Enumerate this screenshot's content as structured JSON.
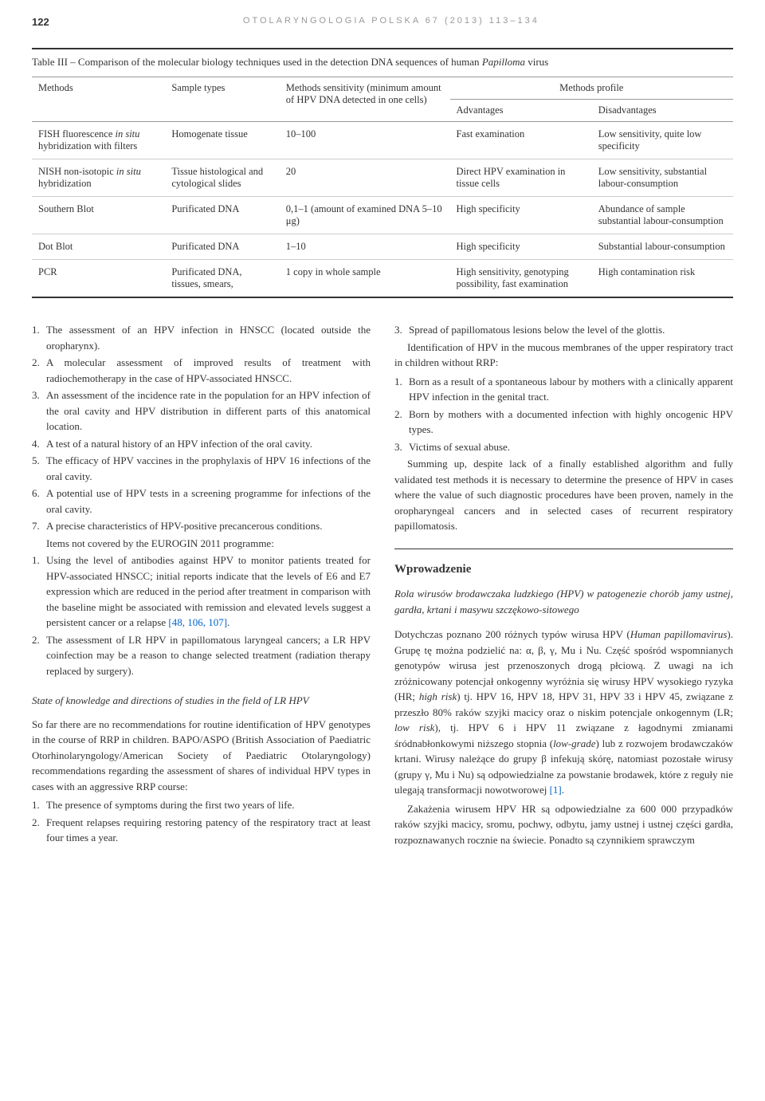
{
  "header": {
    "page_number": "122",
    "journal": "OTOLARYNGOLOGIA POLSKA 67 (2013) 113–134"
  },
  "table": {
    "title_prefix": "Table III – Comparison of the molecular biology techniques used in the detection DNA sequences of human ",
    "title_italic": "Papilloma",
    "title_suffix": " virus",
    "columns": {
      "c1": "Methods",
      "c2": "Sample types",
      "c3": "Methods sensitivity (minimum amount of HPV DNA detected in one cells)",
      "c4": "Methods profile",
      "c4a": "Advantages",
      "c4b": "Disadvantages"
    },
    "rows": [
      {
        "method_pre": "FISH fluorescence ",
        "method_it": "in situ",
        "method_post": " hybridization with filters",
        "sample": "Homogenate tissue",
        "sensitivity": "10–100",
        "adv": "Fast examination",
        "dis": "Low sensitivity, quite low specificity"
      },
      {
        "method_pre": "NISH non-isotopic ",
        "method_it": "in situ",
        "method_post": " hybridization",
        "sample": "Tissue histological and cytological slides",
        "sensitivity": "20",
        "adv": "Direct HPV examination in tissue cells",
        "dis": "Low sensitivity, substantial labour-consumption"
      },
      {
        "method_pre": "Southern Blot",
        "method_it": "",
        "method_post": "",
        "sample": "Purificated DNA",
        "sensitivity": "0,1–1 (amount of examined DNA 5–10 μg)",
        "adv": "High specificity",
        "dis": "Abundance of sample substantial labour-consumption"
      },
      {
        "method_pre": "Dot Blot",
        "method_it": "",
        "method_post": "",
        "sample": "Purificated DNA",
        "sensitivity": "1–10",
        "adv": "High specificity",
        "dis": "Substantial labour-consumption"
      },
      {
        "method_pre": "PCR",
        "method_it": "",
        "method_post": "",
        "sample": "Purificated DNA, tissues, smears,",
        "sensitivity": "1 copy in whole sample",
        "adv": "High sensitivity, genotyping possibility, fast examination",
        "dis": "High contamination risk"
      }
    ]
  },
  "left_col": {
    "list1": [
      "The assessment of an HPV infection in HNSCC (located outside the oropharynx).",
      "A molecular assessment of improved results of treatment with radiochemotherapy in the case of HPV-associated HNSCC.",
      "An assessment of the incidence rate in the population for an HPV infection of the oral cavity and HPV distribution in different parts of this anatomical location.",
      "A test of a natural history of an HPV infection of the oral cavity.",
      "The efficacy of HPV vaccines in the prophylaxis of HPV 16 infections of the oral cavity.",
      "A potential use of HPV tests in a screening programme for infections of the oral cavity.",
      "A precise characteristics of HPV-positive precancerous conditions."
    ],
    "intertext": "Items not covered by the EUROGIN 2011 programme:",
    "list2": [
      "Using the level of antibodies against HPV to monitor patients treated for HPV-associated HNSCC; initial reports indicate that the levels of E6 and E7 expression which are reduced in the period after treatment in comparison with the baseline might be associated with remission and elevated levels suggest a persistent cancer or a relapse [48, 106, 107].",
      "The assessment of LR HPV in papillomatous laryngeal cancers; a LR HPV coinfection may be a reason to change selected treatment (radiation therapy replaced by surgery)."
    ],
    "heading": "State of knowledge and directions of studies in the field of LR HPV",
    "para": "So far there are no recommendations for routine identification of HPV genotypes in the course of RRP in children. BAPO/ASPO (British Association of Paediatric Otorhinolaryngology/American Society of Paediatric Otolaryngology) recommendations regarding the assessment of shares of individual HPV types in cases with an aggressive RRP course:",
    "list3": [
      "The presence of symptoms during the first two years of life.",
      "Frequent relapses requiring restoring patency of the respiratory tract at least four times a year."
    ]
  },
  "right_col": {
    "list1_start": 3,
    "list1": [
      "Spread of papillomatous lesions below the level of the glottis."
    ],
    "para1": "Identification of HPV in the mucous membranes of the upper respiratory tract in children without RRP:",
    "list2": [
      "Born as a result of a spontaneous labour by mothers with a clinically apparent HPV infection in the genital tract.",
      "Born by mothers with a documented infection with highly oncogenic HPV types.",
      "Victims of sexual abuse."
    ],
    "para2": "Summing up, despite lack of a finally established algorithm and fully validated test methods it is necessary to determine the presence of HPV in cases where the value of such diagnostic procedures have been proven, namely in the oropharyngeal cancers and in selected cases of recurrent respiratory papillomatosis.",
    "heading": "Wprowadzenie",
    "subheading": "Rola wirusów brodawczaka ludzkiego (HPV) w patogenezie chorób jamy ustnej, gardła, krtani i masywu szczękowo-sitowego",
    "para3a": "Dotychczas poznano 200 różnych typów wirusa HPV (",
    "para3b": "Human papillomavirus",
    "para3c": "). Grupę tę można podzielić na: α, β, γ, Mu i Nu. Część spośród wspomnianych genotypów wirusa jest przenoszonych drogą płciową. Z uwagi na ich zróżnicowany potencjał onkogenny wyróżnia się wirusy HPV wysokiego ryzyka (HR; ",
    "para3d": "high risk",
    "para3e": ") tj. HPV 16, HPV 18, HPV 31, HPV 33 i HPV 45, związane z przeszło 80% raków szyjki macicy oraz o niskim potencjale onkogennym (LR; ",
    "para3f": "low risk",
    "para3g": "), tj. HPV 6 i HPV 11 związane z łagodnymi zmianami śródnabłonkowymi niższego stopnia (",
    "para3h": "low-grade",
    "para3i": ") lub z rozwojem brodawczaków krtani. Wirusy należące do grupy β infekują skórę, natomiast pozostałe wirusy (grupy γ, Mu i Nu) są odpowiedzialne za powstanie brodawek, które z reguły nie ulegają transformacji nowotworowej ",
    "para3ref": "[1]",
    "para3j": ".",
    "para4": "Zakażenia wirusem HPV HR są odpowiedzialne za 600 000 przypadków raków szyjki macicy, sromu, pochwy, odbytu, jamy ustnej i ustnej części gardła, rozpoznawanych rocznie na świecie. Ponadto są czynnikiem sprawczym"
  }
}
